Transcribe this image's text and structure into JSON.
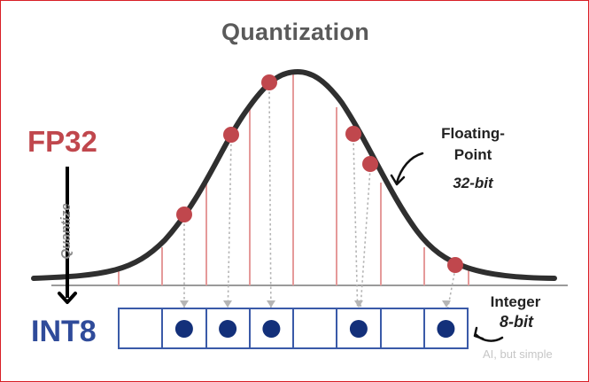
{
  "title": "Quantization",
  "labels": {
    "fp32": "FP32",
    "int8": "INT8",
    "quantize": "Quantize",
    "floating_point": "Floating-Point",
    "fp_bits": "32-bit",
    "integer": "Integer",
    "int_bits": "8-bit",
    "watermark": "AI, but simple"
  },
  "colors": {
    "title": "#5a5a5a",
    "fp32": "#c0474d",
    "int8": "#2f4b9a",
    "curve": "#2f2f2f",
    "sample_line": "#e59a9a",
    "sample_dot": "#c0474d",
    "int_dot": "#13307a",
    "box_border": "#3a5aa8"
  },
  "icons": {
    "quantize_arrow": "arrow-down-icon",
    "floating_point_arrow": "curved-arrow-icon",
    "integer_arrow": "curved-arrow-icon"
  },
  "int8_cells": [
    false,
    true,
    true,
    true,
    false,
    true,
    false,
    true
  ]
}
